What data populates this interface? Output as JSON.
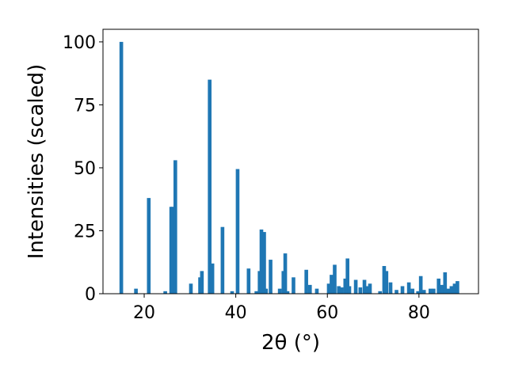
{
  "chart_data": {
    "type": "bar",
    "xlabel": "2θ (°)",
    "ylabel": "Intensities (scaled)",
    "xlim": [
      11,
      93
    ],
    "ylim": [
      0,
      105
    ],
    "x_ticks": [
      20,
      40,
      60,
      80
    ],
    "y_ticks": [
      0,
      25,
      50,
      75,
      100
    ],
    "grid": false,
    "bar_color": "#1f77b4",
    "bar_width": 0.8,
    "x": [
      15.0,
      18.2,
      21.0,
      24.6,
      25.9,
      26.2,
      26.8,
      30.2,
      32.2,
      32.6,
      34.3,
      34.9,
      37.1,
      39.2,
      40.4,
      42.8,
      44.5,
      45.2,
      45.6,
      46.2,
      46.6,
      47.6,
      49.6,
      50.4,
      50.8,
      51.3,
      52.6,
      55.4,
      56.2,
      57.7,
      60.3,
      60.9,
      61.6,
      62.5,
      63.1,
      63.9,
      64.4,
      64.8,
      66.2,
      67.2,
      68.1,
      68.7,
      69.3,
      71.5,
      72.4,
      72.9,
      73.8,
      75.1,
      76.4,
      77.8,
      78.6,
      79.8,
      80.4,
      81.1,
      82.5,
      83.2,
      84.3,
      85.0,
      85.7,
      86.4,
      87.1,
      87.8,
      88.4
    ],
    "values": [
      100,
      2,
      38,
      1,
      34.5,
      34.5,
      53,
      4,
      6.5,
      9,
      85,
      12,
      26.5,
      1,
      49.5,
      10,
      1,
      9,
      25.5,
      24.5,
      2,
      13.5,
      2,
      9,
      16,
      1,
      6.5,
      9.5,
      3.5,
      2,
      4,
      7.5,
      11.5,
      3,
      2.5,
      6,
      14,
      3,
      5.5,
      2.5,
      5.5,
      3,
      4,
      1,
      11,
      9,
      4.5,
      1.5,
      3,
      4.5,
      2,
      1,
      7,
      1.5,
      2,
      2,
      6,
      3.5,
      8.5,
      2,
      3,
      4,
      5
    ]
  }
}
